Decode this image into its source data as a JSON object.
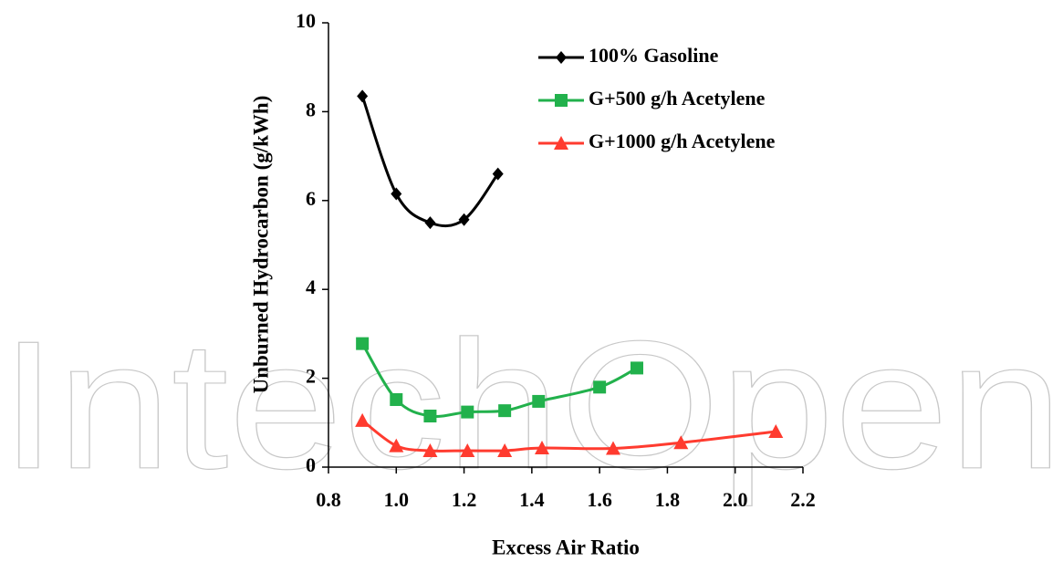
{
  "chart_data": {
    "type": "line",
    "watermark": "IntechOpen",
    "x_label": "Excess Air Ratio",
    "y_label": "Unburned Hydrocarbon (g/kWh)",
    "xlim": [
      0.8,
      2.2
    ],
    "ylim": [
      0,
      10
    ],
    "xticks": [
      0.8,
      {
        "value": 1,
        "label": "1.0"
      },
      1.2,
      1.4,
      1.6,
      1.8,
      {
        "value": 2,
        "label": "2.0"
      },
      2.2
    ],
    "yticks": [
      0,
      2,
      4,
      6,
      8,
      10
    ],
    "grid": false,
    "legend_position": "upper-right",
    "smooth": true,
    "series": [
      {
        "name": "100% Gasoline",
        "color": "#000000",
        "marker": "diamond",
        "x": [
          0.9,
          1.0,
          1.1,
          1.2,
          1.3
        ],
        "values": [
          8.35,
          6.15,
          5.5,
          5.57,
          6.6
        ]
      },
      {
        "name": "G+500 g/h Acetylene",
        "color": "#22b14c",
        "marker": "square",
        "x": [
          0.9,
          1.0,
          1.1,
          1.21,
          1.32,
          1.42,
          1.6,
          1.71
        ],
        "values": [
          2.78,
          1.52,
          1.15,
          1.24,
          1.27,
          1.48,
          1.8,
          2.23
        ]
      },
      {
        "name": "G+1000 g/h Acetylene",
        "color": "#ff3b2f",
        "marker": "triangle",
        "x": [
          0.9,
          1.0,
          1.1,
          1.21,
          1.32,
          1.43,
          1.64,
          1.84,
          2.12
        ],
        "values": [
          1.05,
          0.48,
          0.37,
          0.37,
          0.37,
          0.43,
          0.42,
          0.55,
          0.8
        ]
      }
    ]
  }
}
